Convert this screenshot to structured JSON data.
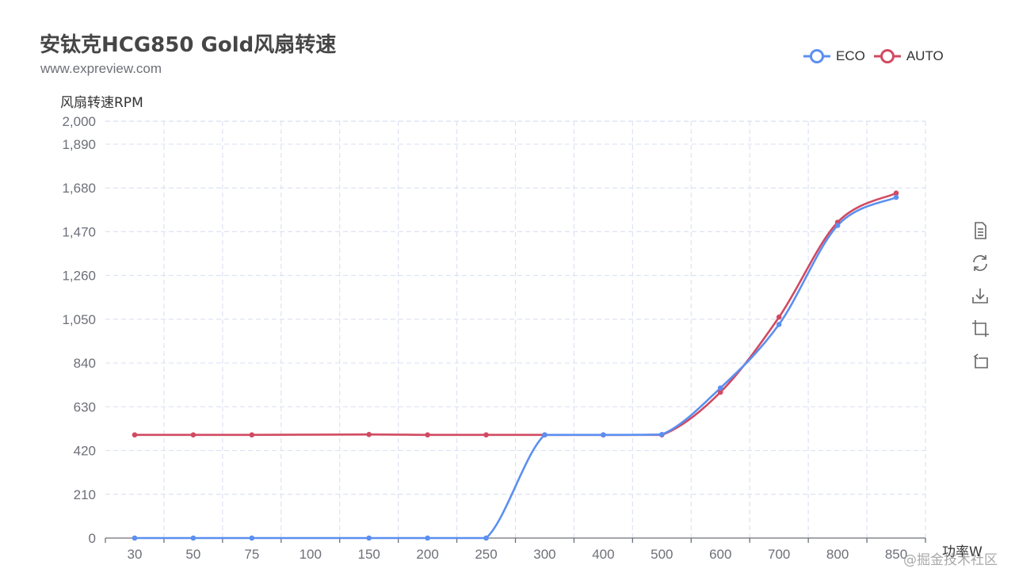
{
  "title": "安钛克HCG850 Gold风扇转速",
  "subtitle": "www.expreview.com",
  "watermark": "@掘金技术社区",
  "toolbox": {
    "icons": [
      "data-view-icon",
      "restore-icon",
      "save-image-icon",
      "zoom-icon",
      "zoom-reset-icon"
    ]
  },
  "colors": {
    "eco": "#5b8ff0",
    "auto": "#d14a61",
    "grid": "#dde3f3",
    "axis": "#6e7079"
  },
  "chart_data": {
    "type": "line",
    "smooth": true,
    "ylabel": "风扇转速RPM",
    "xlabel": "功率W",
    "categories": [
      "30",
      "50",
      "75",
      "100",
      "150",
      "200",
      "250",
      "300",
      "400",
      "500",
      "600",
      "700",
      "800",
      "850"
    ],
    "yticks": [
      0,
      210,
      420,
      630,
      840,
      1050,
      1260,
      1470,
      1680,
      1890,
      2000
    ],
    "ylim": [
      0,
      2000
    ],
    "grid": true,
    "legend_position": "top-right",
    "series": [
      {
        "name": "ECO",
        "color": "#5b8ff0",
        "points": [
          {
            "x": "30",
            "y": 0
          },
          {
            "x": "50",
            "y": 0
          },
          {
            "x": "75",
            "y": 0
          },
          {
            "x": "150",
            "y": 0
          },
          {
            "x": "200",
            "y": 0
          },
          {
            "x": "250",
            "y": 0
          },
          {
            "x": "300",
            "y": 495
          },
          {
            "x": "400",
            "y": 495
          },
          {
            "x": "500",
            "y": 497
          },
          {
            "x": "600",
            "y": 720
          },
          {
            "x": "700",
            "y": 1025
          },
          {
            "x": "800",
            "y": 1500
          },
          {
            "x": "850",
            "y": 1635
          }
        ]
      },
      {
        "name": "AUTO",
        "color": "#d14a61",
        "points": [
          {
            "x": "30",
            "y": 495
          },
          {
            "x": "50",
            "y": 495
          },
          {
            "x": "75",
            "y": 495
          },
          {
            "x": "150",
            "y": 497
          },
          {
            "x": "200",
            "y": 495
          },
          {
            "x": "250",
            "y": 495
          },
          {
            "x": "300",
            "y": 495
          },
          {
            "x": "400",
            "y": 495
          },
          {
            "x": "500",
            "y": 495
          },
          {
            "x": "600",
            "y": 700
          },
          {
            "x": "700",
            "y": 1060
          },
          {
            "x": "800",
            "y": 1515
          },
          {
            "x": "850",
            "y": 1655
          }
        ]
      }
    ]
  }
}
